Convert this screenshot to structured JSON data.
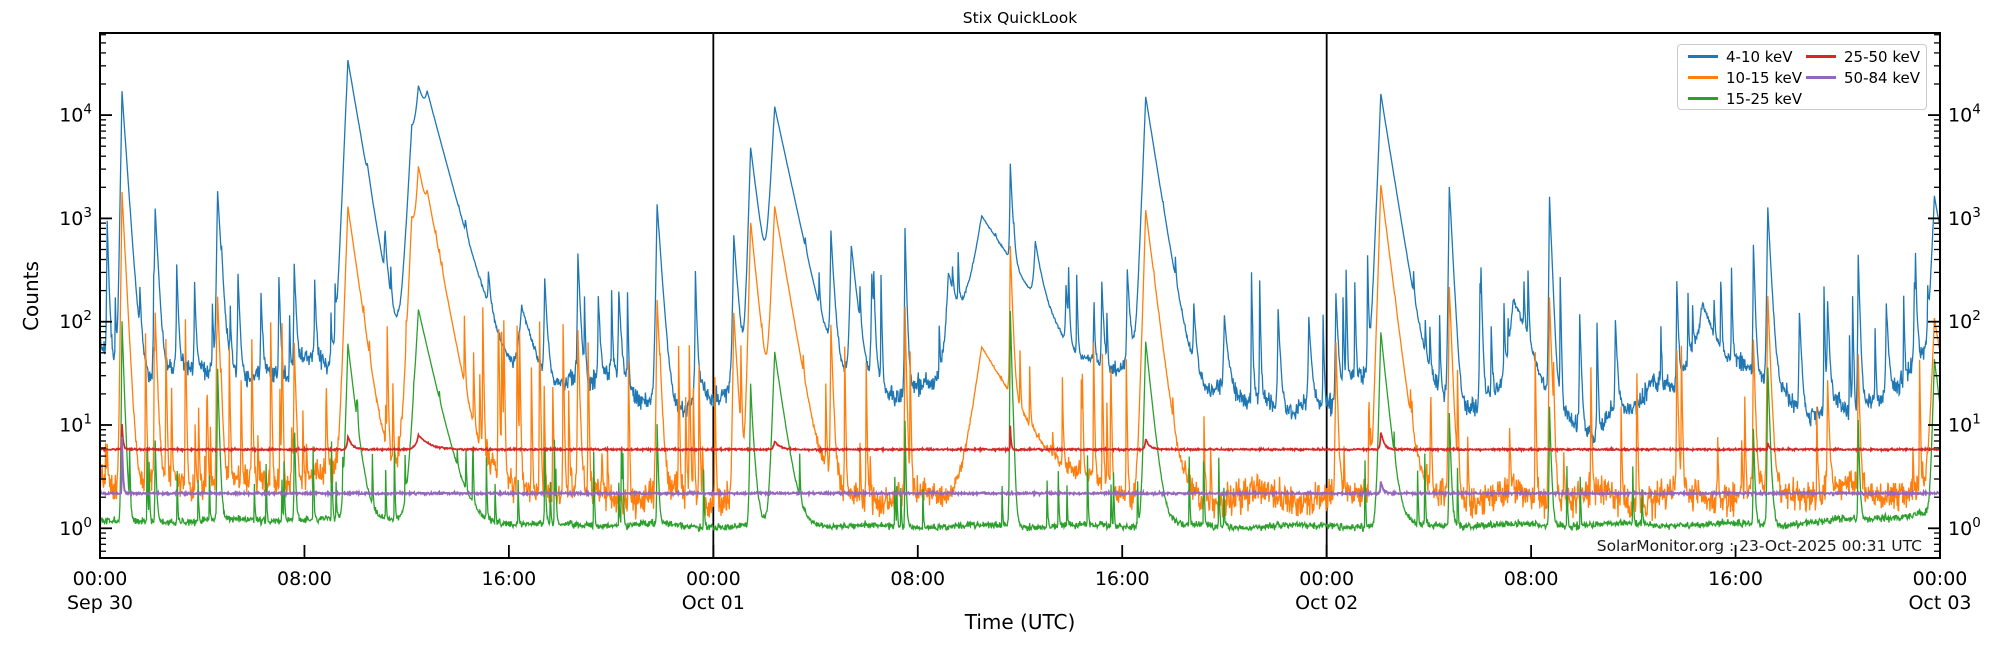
{
  "title": "Stix QuickLook",
  "axes": {
    "xlabel": "Time (UTC)",
    "ylabel": "Counts"
  },
  "watermark": "SolarMonitor.org : 23-Oct-2025 00:31 UTC",
  "legend": {
    "columns": 2,
    "items": [
      {
        "label": "4-10 keV",
        "color": "#1f77b4"
      },
      {
        "label": "10-15 keV",
        "color": "#ff7f0e"
      },
      {
        "label": "15-25 keV",
        "color": "#2ca02c"
      },
      {
        "label": "25-50 keV",
        "color": "#d62728"
      },
      {
        "label": "50-84 keV",
        "color": "#9467bd"
      }
    ]
  },
  "chart_data": {
    "type": "line",
    "title": "Stix QuickLook",
    "xlabel": "Time (UTC)",
    "ylabel": "Counts",
    "x_start": "Sep 30 00:00 UTC",
    "x_end": "Oct 03 00:00 UTC",
    "x_hours_span": 72,
    "y_scale": "log",
    "ylim": [
      0.45,
      60000
    ],
    "y_decades": [
      0,
      1,
      2,
      3,
      4
    ],
    "grid": false,
    "legend_position": "upper right",
    "sample_step_h": 0.02,
    "day_lines_t": [
      24,
      48
    ],
    "x_ticks": [
      {
        "t": 0,
        "label": "00:00",
        "date": "Sep 30"
      },
      {
        "t": 8,
        "label": "08:00"
      },
      {
        "t": 16,
        "label": "16:00"
      },
      {
        "t": 24,
        "label": "00:00",
        "date": "Oct 01"
      },
      {
        "t": 32,
        "label": "08:00"
      },
      {
        "t": 40,
        "label": "16:00"
      },
      {
        "t": 48,
        "label": "00:00",
        "date": "Oct 02"
      },
      {
        "t": 56,
        "label": "08:00"
      },
      {
        "t": 64,
        "label": "16:00"
      },
      {
        "t": 72,
        "label": "00:00",
        "date": "Oct 03"
      }
    ],
    "series": [
      {
        "name": "4-10 keV",
        "color": "#1f77b4",
        "stroke_width": 1.3,
        "jitter": 0.14,
        "noise_seed": 21,
        "wobble": [
          [
            0.18,
            5.1
          ],
          [
            0.12,
            1.7
          ]
        ],
        "envelope": [
          [
            0,
            55
          ],
          [
            2,
            35
          ],
          [
            5,
            30
          ],
          [
            8,
            40
          ],
          [
            11,
            30
          ],
          [
            14,
            45
          ],
          [
            16,
            28
          ],
          [
            18,
            22
          ],
          [
            20,
            26
          ],
          [
            22,
            18
          ],
          [
            24,
            16
          ],
          [
            26,
            30
          ],
          [
            28,
            25
          ],
          [
            30,
            18
          ],
          [
            32,
            25
          ],
          [
            34,
            60
          ],
          [
            36,
            30
          ],
          [
            38,
            16
          ],
          [
            40,
            25
          ],
          [
            42,
            35
          ],
          [
            44,
            18
          ],
          [
            46,
            14
          ],
          [
            48,
            20
          ],
          [
            50,
            30
          ],
          [
            52,
            22
          ],
          [
            54,
            14
          ],
          [
            55.5,
            35
          ],
          [
            57,
            12
          ],
          [
            58.5,
            10
          ],
          [
            60,
            14
          ],
          [
            61.5,
            25
          ],
          [
            62.5,
            60
          ],
          [
            63.5,
            40
          ],
          [
            65,
            25
          ],
          [
            66.5,
            12
          ],
          [
            68,
            20
          ],
          [
            69.5,
            14
          ],
          [
            71,
            30
          ],
          [
            72,
            60
          ]
        ],
        "peaks": [
          [
            0.28,
            900,
            0.05
          ],
          [
            0.85,
            17000,
            0.12
          ],
          [
            1.55,
            140,
            0.05
          ],
          [
            2.15,
            1200,
            0.09
          ],
          [
            3.0,
            320,
            0.05
          ],
          [
            3.7,
            200,
            0.05
          ],
          [
            4.6,
            1800,
            0.1
          ],
          [
            5.4,
            260,
            0.06
          ],
          [
            6.3,
            160,
            0.05
          ],
          [
            7.0,
            240,
            0.05
          ],
          [
            7.6,
            330,
            0.06
          ],
          [
            8.4,
            200,
            0.05
          ],
          [
            9.7,
            34000,
            0.3
          ],
          [
            10.45,
            700,
            0.12
          ],
          [
            11.15,
            350,
            0.08
          ],
          [
            12.2,
            6000,
            0.35
          ],
          [
            12.45,
            16000,
            0.5
          ],
          [
            12.8,
            8000,
            0.45
          ],
          [
            14.3,
            220,
            0.06
          ],
          [
            15.2,
            160,
            0.08
          ],
          [
            16.5,
            110,
            0.4
          ],
          [
            17.4,
            230,
            0.08
          ],
          [
            18.7,
            430,
            0.07
          ],
          [
            19.5,
            150,
            0.06
          ],
          [
            20.3,
            160,
            0.08
          ],
          [
            21.8,
            1350,
            0.12
          ],
          [
            23.3,
            110,
            0.08
          ],
          [
            24.8,
            660,
            0.12
          ],
          [
            25.45,
            4800,
            0.22
          ],
          [
            26.4,
            12000,
            0.38
          ],
          [
            28.6,
            700,
            0.09
          ],
          [
            29.4,
            520,
            0.18
          ],
          [
            30.2,
            260,
            0.08
          ],
          [
            31.5,
            650,
            0.05
          ],
          [
            33.2,
            250,
            0.3
          ],
          [
            34.5,
            1000,
            1.1
          ],
          [
            35.62,
            3000,
            0.07
          ],
          [
            36.6,
            430,
            0.22
          ],
          [
            37.8,
            160,
            0.08
          ],
          [
            39.2,
            210,
            0.06
          ],
          [
            40.2,
            280,
            0.08
          ],
          [
            40.92,
            15000,
            0.28
          ],
          [
            42.8,
            110,
            0.08
          ],
          [
            44.0,
            90,
            0.12
          ],
          [
            46.1,
            115,
            0.07
          ],
          [
            47.3,
            95,
            0.08
          ],
          [
            48.35,
            170,
            0.07
          ],
          [
            50.12,
            16000,
            0.28
          ],
          [
            52.8,
            2000,
            0.09
          ],
          [
            54.0,
            220,
            0.06
          ],
          [
            55.3,
            130,
            0.45
          ],
          [
            56.72,
            1600,
            0.07
          ],
          [
            57.9,
            110,
            0.05
          ],
          [
            59.3,
            90,
            0.06
          ],
          [
            61.7,
            220,
            0.05
          ],
          [
            62.7,
            100,
            0.5
          ],
          [
            64.7,
            520,
            0.05
          ],
          [
            65.25,
            1250,
            0.09
          ],
          [
            66.5,
            110,
            0.07
          ],
          [
            67.6,
            140,
            0.06
          ],
          [
            68.8,
            430,
            0.05
          ],
          [
            69.9,
            130,
            0.07
          ],
          [
            71.0,
            200,
            0.07
          ],
          [
            71.78,
            1600,
            0.3
          ]
        ],
        "random_spikes": [
          {
            "seed": 3,
            "count": 70,
            "t_range": [
              0,
              72
            ],
            "log10_v_range": [
              1.7,
              2.5
            ],
            "width_h": 0.03
          }
        ]
      },
      {
        "name": "10-15 keV",
        "color": "#ff7f0e",
        "stroke_width": 1.3,
        "jitter": 0.22,
        "noise_seed": 37,
        "wobble": [
          [
            0.15,
            3.3
          ]
        ],
        "envelope": [
          [
            0,
            3
          ],
          [
            4,
            2.5
          ],
          [
            8,
            3
          ],
          [
            12,
            4
          ],
          [
            16,
            2.5
          ],
          [
            20,
            2.1
          ],
          [
            24,
            2.0
          ],
          [
            30,
            2.0
          ],
          [
            36,
            2.0
          ],
          [
            48,
            2.0
          ],
          [
            60,
            2.0
          ],
          [
            72,
            2.4
          ]
        ],
        "peaks": [
          [
            0.85,
            1800,
            0.09
          ],
          [
            2.15,
            110,
            0.06
          ],
          [
            4.6,
            160,
            0.07
          ],
          [
            7.6,
            60,
            0.05
          ],
          [
            9.7,
            1300,
            0.25
          ],
          [
            12.2,
            900,
            0.3
          ],
          [
            12.45,
            2800,
            0.35
          ],
          [
            12.8,
            700,
            0.3
          ],
          [
            18.7,
            80,
            0.05
          ],
          [
            21.8,
            160,
            0.08
          ],
          [
            24.8,
            120,
            0.1
          ],
          [
            25.45,
            900,
            0.18
          ],
          [
            26.4,
            1300,
            0.3
          ],
          [
            28.6,
            90,
            0.06
          ],
          [
            31.5,
            120,
            0.04
          ],
          [
            34.5,
            55,
            1.0
          ],
          [
            35.62,
            520,
            0.06
          ],
          [
            40.92,
            1200,
            0.22
          ],
          [
            48.35,
            60,
            0.05
          ],
          [
            50.12,
            2100,
            0.22
          ],
          [
            52.8,
            215,
            0.07
          ],
          [
            56.72,
            170,
            0.06
          ],
          [
            61.7,
            50,
            0.04
          ],
          [
            64.7,
            65,
            0.05
          ],
          [
            65.25,
            175,
            0.07
          ],
          [
            67.6,
            25,
            0.05
          ],
          [
            68.8,
            45,
            0.04
          ],
          [
            71.78,
            105,
            0.28
          ]
        ],
        "random_spikes": [
          {
            "seed": 7,
            "count": 75,
            "t_range": [
              0,
              24
            ],
            "log10_v_range": [
              0.5,
              2.0
            ],
            "width_h": 0.025
          },
          {
            "seed": 8,
            "count": 60,
            "t_range": [
              24,
              72
            ],
            "log10_v_range": [
              0.45,
              1.75
            ],
            "width_h": 0.025
          }
        ]
      },
      {
        "name": "15-25 keV",
        "color": "#2ca02c",
        "stroke_width": 1.3,
        "jitter": 0.05,
        "noise_seed": 53,
        "wobble": [
          [
            0.03,
            4.2
          ]
        ],
        "envelope": [
          [
            0,
            1.15
          ],
          [
            12,
            1.25
          ],
          [
            16,
            1.1
          ],
          [
            24,
            1.05
          ],
          [
            48,
            1.05
          ],
          [
            66,
            1.1
          ],
          [
            72,
            1.4
          ]
        ],
        "peaks": [
          [
            0.85,
            100,
            0.06
          ],
          [
            2.15,
            6,
            0.04
          ],
          [
            4.6,
            34,
            0.05
          ],
          [
            7.6,
            6,
            0.04
          ],
          [
            9.7,
            60,
            0.2
          ],
          [
            12.45,
            130,
            0.4
          ],
          [
            17.4,
            5,
            0.03
          ],
          [
            21.8,
            9,
            0.04
          ],
          [
            25.45,
            20,
            0.1
          ],
          [
            26.4,
            50,
            0.25
          ],
          [
            31.5,
            10,
            0.03
          ],
          [
            35.62,
            126,
            0.05
          ],
          [
            40.92,
            63,
            0.18
          ],
          [
            50.12,
            78,
            0.18
          ],
          [
            52.8,
            12,
            0.05
          ],
          [
            56.72,
            14,
            0.05
          ],
          [
            64.7,
            8,
            0.04
          ],
          [
            65.25,
            35,
            0.06
          ],
          [
            68.8,
            10,
            0.04
          ],
          [
            71.78,
            42,
            0.2
          ]
        ],
        "random_spikes": [
          {
            "seed": 11,
            "count": 40,
            "t_range": [
              0,
              24
            ],
            "log10_v_range": [
              0.15,
              0.8
            ],
            "width_h": 0.02
          },
          {
            "seed": 12,
            "count": 30,
            "t_range": [
              24,
              72
            ],
            "log10_v_range": [
              0.12,
              0.65
            ],
            "width_h": 0.02
          }
        ]
      },
      {
        "name": "25-50 keV",
        "color": "#d62728",
        "stroke_width": 1.7,
        "jitter": 0.013,
        "noise_seed": 71,
        "wobble": [],
        "envelope": [
          [
            0,
            5.8
          ],
          [
            72,
            5.8
          ]
        ],
        "peaks": [
          [
            0.85,
            4.5,
            0.04
          ],
          [
            9.7,
            2,
            0.15
          ],
          [
            12.45,
            2.2,
            0.4
          ],
          [
            26.4,
            1.2,
            0.2
          ],
          [
            35.62,
            4,
            0.03
          ],
          [
            40.92,
            1.5,
            0.15
          ],
          [
            50.12,
            2.7,
            0.12
          ],
          [
            65.25,
            1,
            0.05
          ]
        ],
        "random_spikes": []
      },
      {
        "name": "50-84 keV",
        "color": "#9467bd",
        "stroke_width": 1.9,
        "jitter": 0.016,
        "noise_seed": 89,
        "wobble": [],
        "envelope": [
          [
            0,
            2.18
          ],
          [
            72,
            2.18
          ]
        ],
        "peaks": [
          [
            0.85,
            5.5,
            0.03
          ],
          [
            50.12,
            0.7,
            0.08
          ]
        ],
        "random_spikes": []
      }
    ]
  }
}
